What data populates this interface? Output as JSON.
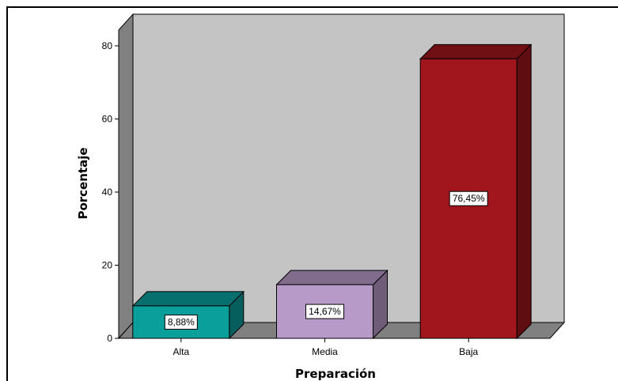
{
  "chart_data": {
    "type": "bar",
    "title": "",
    "xlabel": "Preparación",
    "ylabel": "Porcentaje",
    "ylim": [
      0,
      80
    ],
    "yticks": [
      "0",
      "20",
      "40",
      "60",
      "80"
    ],
    "categories": [
      "Alta",
      "Media",
      "Baja"
    ],
    "values": [
      8.88,
      14.67,
      76.45
    ],
    "data_labels": [
      "8,88%",
      "14,67%",
      "76,45%"
    ],
    "colors": {
      "bars": [
        "#0a9f9b",
        "#b89ac9",
        "#a0161c"
      ],
      "back_wall": "#c4c4c4",
      "side_wall": "#808080",
      "floor": "#808080"
    },
    "grid": false,
    "legend": "none"
  }
}
